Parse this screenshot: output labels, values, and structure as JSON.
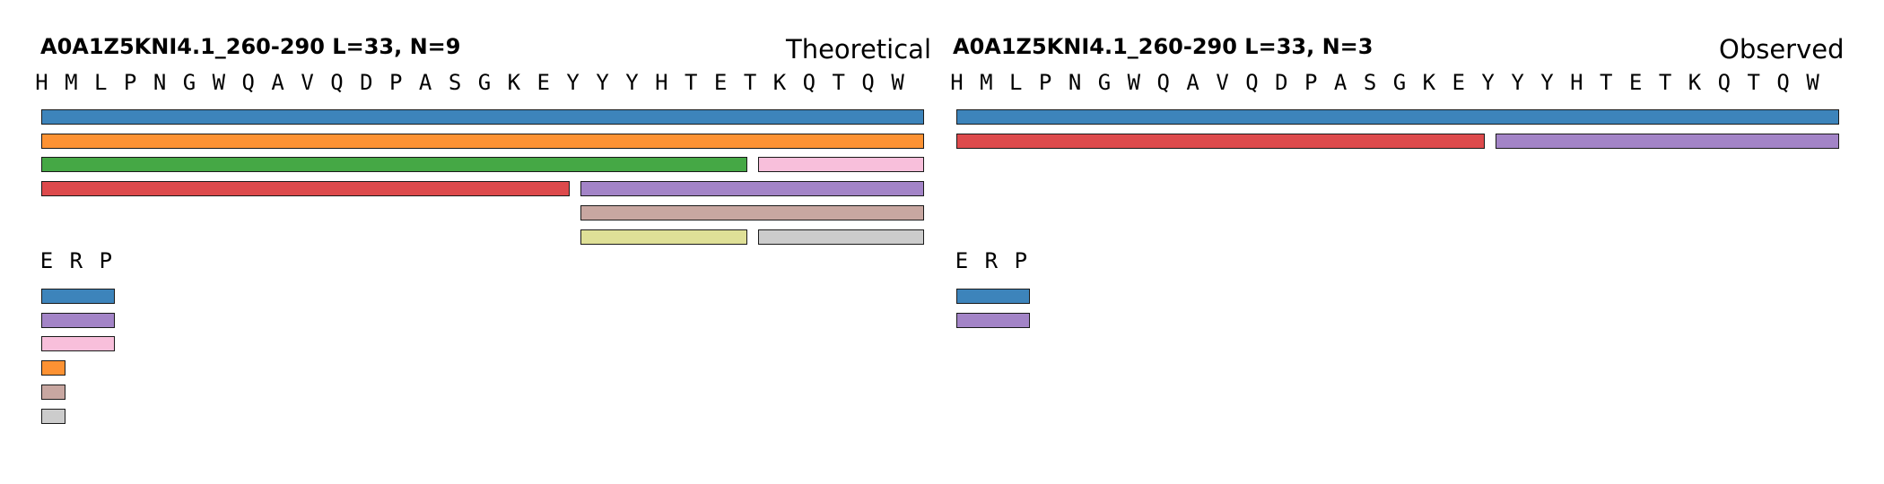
{
  "colors": {
    "blue": "#3d84bb",
    "orange": "#fd9233",
    "green": "#45a845",
    "pink": "#f8bfdb",
    "red": "#dd4a4c",
    "purple": "#a384c7",
    "brown": "#c8a7a1",
    "olive": "#dfe097",
    "gray": "#cccccc"
  },
  "panels": [
    {
      "title": "A0A1Z5KNI4.1_260-290  L=33, N=9",
      "mode": "Theoretical",
      "sequence": [
        "H",
        "M",
        "L",
        "P",
        "N",
        "G",
        "W",
        "Q",
        "A",
        "V",
        "Q",
        "D",
        "P",
        "A",
        "S",
        "G",
        "K",
        "E",
        "Y",
        "Y",
        "Y",
        "H",
        "T",
        "E",
        "T",
        "K",
        "Q",
        "T",
        "Q",
        "W"
      ],
      "rows": [
        [
          {
            "start": 0,
            "end": 30,
            "color": "blue"
          }
        ],
        [
          {
            "start": 0,
            "end": 30,
            "color": "orange"
          }
        ],
        [
          {
            "start": 0,
            "end": 24,
            "color": "green"
          },
          {
            "start": 24,
            "end": 30,
            "color": "pink"
          }
        ],
        [
          {
            "start": 0,
            "end": 18,
            "color": "red"
          },
          {
            "start": 18,
            "end": 30,
            "color": "purple"
          }
        ],
        [
          {
            "start": 18,
            "end": 30,
            "color": "brown"
          }
        ],
        [
          {
            "start": 18,
            "end": 24,
            "color": "olive"
          },
          {
            "start": 24,
            "end": 30,
            "color": "gray"
          }
        ]
      ],
      "erp_header": [
        "E",
        "R",
        "P"
      ],
      "erp_bars": [
        {
          "units": 3,
          "color": "blue"
        },
        {
          "units": 3,
          "color": "purple"
        },
        {
          "units": 3,
          "color": "pink"
        },
        {
          "units": 1,
          "color": "orange"
        },
        {
          "units": 1,
          "color": "brown"
        },
        {
          "units": 1,
          "color": "gray"
        }
      ]
    },
    {
      "title": "A0A1Z5KNI4.1_260-290  L=33, N=3",
      "mode": "Observed",
      "sequence": [
        "H",
        "M",
        "L",
        "P",
        "N",
        "G",
        "W",
        "Q",
        "A",
        "V",
        "Q",
        "D",
        "P",
        "A",
        "S",
        "G",
        "K",
        "E",
        "Y",
        "Y",
        "Y",
        "H",
        "T",
        "E",
        "T",
        "K",
        "Q",
        "T",
        "Q",
        "W"
      ],
      "rows": [
        [
          {
            "start": 0,
            "end": 30,
            "color": "blue"
          }
        ],
        [
          {
            "start": 0,
            "end": 18,
            "color": "red"
          },
          {
            "start": 18,
            "end": 30,
            "color": "purple"
          }
        ]
      ],
      "erp_header": [
        "E",
        "R",
        "P"
      ],
      "erp_bars": [
        {
          "units": 3,
          "color": "blue"
        },
        {
          "units": 3,
          "color": "purple"
        }
      ]
    }
  ]
}
